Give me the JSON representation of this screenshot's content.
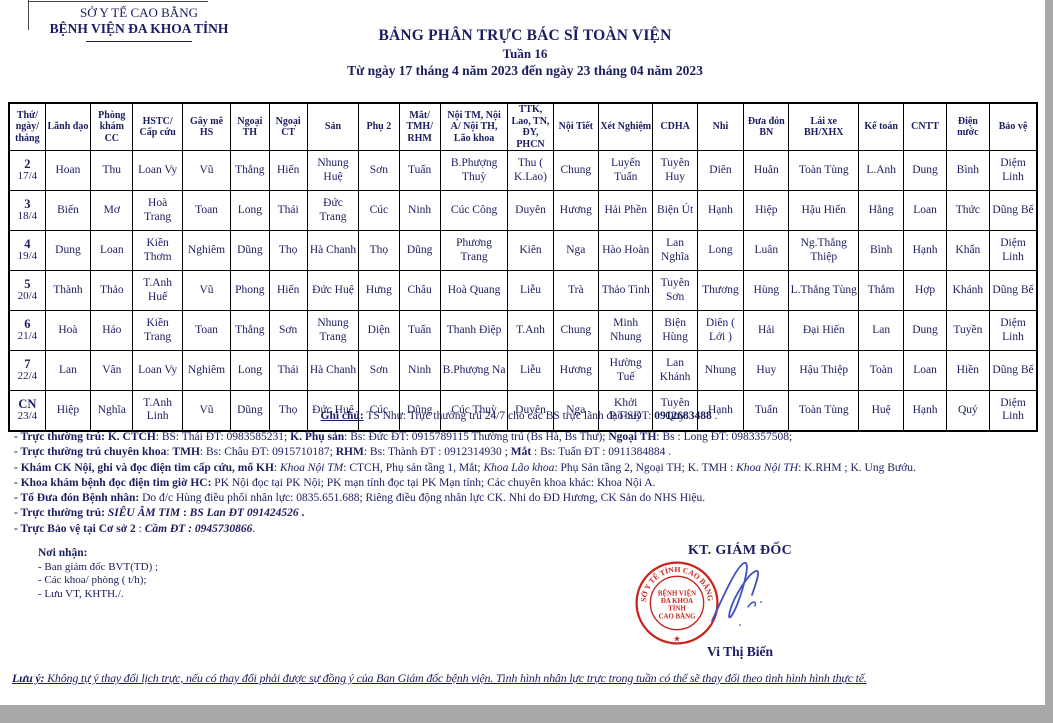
{
  "page": {
    "org_line1": "SỞ Y TẾ CAO BẰNG",
    "org_line2": "BỆNH VIỆN ĐA KHOA TỈNH",
    "title": "BẢNG PHÂN TRỰC BÁC SĨ TOÀN VIỆN",
    "subtitle": "Tuần 16",
    "date_range": "Từ ngày 17 tháng 4 năm 2023 đến ngày 23 tháng 04 năm 2023"
  },
  "table": {
    "columns": [
      "Thứ/ ngày/ tháng",
      "Lãnh đạo",
      "Phòng khám CC",
      "HSTC/ Cấp cứu",
      "Gây mê HS",
      "Ngoại TH",
      "Ngoại CT",
      "Sản",
      "Phụ 2",
      "Mắt/ TMH/ RHM",
      "Nội TM, Nội A/ Nội TH, Lão khoa",
      "TTK, Lao, TN, ĐY, PHCN",
      "Nội Tiết",
      "Xét Nghiệm",
      "CDHA",
      "Nhi",
      "Đưa đón BN",
      "Lái xe BH/XHX",
      "Kế toán",
      "CNTT",
      "Điện nước",
      "Bảo vệ"
    ],
    "rows": [
      {
        "day": "2",
        "date": "17/4",
        "cells": [
          "Hoan",
          "Thu",
          "Loan Vy",
          "Vũ",
          "Thắng",
          "Hiến",
          "Nhung Huệ",
          "Sơn",
          "Tuấn",
          "B.Phượng Thuỳ",
          "Thu ( K.Lao)",
          "Chung",
          "Luyến Tuấn",
          "Tuyên Huy",
          "Diên",
          "Huân",
          "Toàn Tùng",
          "L.Anh",
          "Dung",
          "Bình",
          "Diệm Linh"
        ]
      },
      {
        "day": "3",
        "date": "18/4",
        "cells": [
          "Biến",
          "Mơ",
          "Hoà Trang",
          "Toan",
          "Long",
          "Thái",
          "Đức Trang",
          "Cúc",
          "Ninh",
          "Cúc Công",
          "Duyên",
          "Hương",
          "Hải Phền",
          "Biện Út",
          "Hạnh",
          "Hiệp",
          "Hậu Hiến",
          "Hằng",
          "Loan",
          "Thức",
          "Dũng Bế"
        ]
      },
      {
        "day": "4",
        "date": "19/4",
        "cells": [
          "Dung",
          "Loan",
          "Kiền Thơm",
          "Nghiêm",
          "Dũng",
          "Thọ",
          "Hà Chanh",
          "Thọ",
          "Dũng",
          "Phương Trang",
          "Kiên",
          "Nga",
          "Hào Hoàn",
          "Lan Nghĩa",
          "Long",
          "Luân",
          "Ng.Thắng Thiệp",
          "Bình",
          "Hạnh",
          "Khẩn",
          "Diệm Linh"
        ]
      },
      {
        "day": "5",
        "date": "20/4",
        "cells": [
          "Thành",
          "Thảo",
          "T.Anh Huế",
          "Vũ",
          "Phong",
          "Hiến",
          "Đức Huệ",
          "Hưng",
          "Châu",
          "Hoà Quang",
          "Liễu",
          "Trà",
          "Thảo Tình",
          "Tuyên Sơn",
          "Thương",
          "Hùng",
          "L.Thắng Tùng",
          "Thắm",
          "Hợp",
          "Khánh",
          "Dũng Bế"
        ]
      },
      {
        "day": "6",
        "date": "21/4",
        "cells": [
          "Hoà",
          "Háo",
          "Kiền Trang",
          "Toan",
          "Thắng",
          "Sơn",
          "Nhung Trang",
          "Diện",
          "Tuấn",
          "Thanh Điệp",
          "T.Anh",
          "Chung",
          "Minh Nhung",
          "Biện Hùng",
          "Diên ( Lới )",
          "Hải",
          "Đại Hiến",
          "Lan",
          "Dung",
          "Tuyền",
          "Diệm Linh"
        ]
      },
      {
        "day": "7",
        "date": "22/4",
        "cells": [
          "Lan",
          "Vân",
          "Loan Vy",
          "Nghiêm",
          "Long",
          "Thái",
          "Hà Chanh",
          "Sơn",
          "Ninh",
          "B.Phượng Na",
          "Liễu",
          "Hương",
          "Hường Tuế",
          "Lan Khánh",
          "Nhung",
          "Huy",
          "Hậu Thiệp",
          "Toàn",
          "Loan",
          "Hiền",
          "Dũng Bế"
        ]
      },
      {
        "day": "CN",
        "date": "23/4",
        "cells": [
          "Hiệp",
          "Nghĩa",
          "T.Anh Linh",
          "Vũ",
          "Dũng",
          "Thọ",
          "Đức Huệ",
          "Cúc",
          "Dũng",
          "Cúc Thuỳ",
          "Duyên",
          "Nga",
          "Khởi P.Thuỷ",
          "Tuyên Quy",
          "Hạnh",
          "Tuấn",
          "Toàn Tùng",
          "Huệ",
          "Hạnh",
          "Quý",
          "Diệm Linh"
        ]
      }
    ]
  },
  "notes": {
    "ghi_chu": [
      {
        "t": "Ghi chú:",
        "b": true,
        "u": true
      },
      {
        "t": " TS Như: Trực thường trú 24/7 cho các BS trực lãnh đạo-SĐT: "
      },
      {
        "t": "0912683488",
        "b": true
      },
      {
        "t": " ."
      }
    ],
    "lines": [
      [
        {
          "t": "- Trực thường trú: K. CTCH",
          "b": true
        },
        {
          "t": ": BS: Thái ĐT: 0983585231; "
        },
        {
          "t": "K. Phụ sản",
          "b": true
        },
        {
          "t": ": Bs: Đức ĐT: 0915789115 Thường trú  (Bs Hà, Bs Thư);  "
        },
        {
          "t": "Ngoại TH",
          "b": true
        },
        {
          "t": ": Bs : Long ĐT: 0983357508;"
        }
      ],
      [
        {
          "t": "- Trực thường trú chuyên khoa",
          "b": true
        },
        {
          "t": ": "
        },
        {
          "t": "TMH",
          "b": true
        },
        {
          "t": ": Bs: Châu  ĐT: 0915710187;  "
        },
        {
          "t": "RHM",
          "b": true
        },
        {
          "t": ": Bs: Thành  ĐT : 0912314930 ; "
        },
        {
          "t": "Mắt",
          "b": true
        },
        {
          "t": " : Bs: Tuấn  ĐT : 0911384884 ."
        }
      ],
      [
        {
          "t": "- Khám CK Nội, ghi và đọc điện tim cấp cứu, mổ KH",
          "b": true
        },
        {
          "t": ": "
        },
        {
          "t": "Khoa Nội TM",
          "i": true
        },
        {
          "t": ": CTCH, Phụ sản tầng 1, Mắt; "
        },
        {
          "t": "Khoa Lão khoa",
          "i": true
        },
        {
          "t": ": Phụ Sản tầng 2, Ngoại TH; K. TMH : "
        },
        {
          "t": "Khoa Nội TH",
          "i": true
        },
        {
          "t": ": K.RHM ; K. Ung Bướu."
        }
      ],
      [
        {
          "t": "- Khoa khám bệnh đọc điện tim giờ HC:",
          "b": true
        },
        {
          "t": " PK Nội đọc tại PK Nội; PK mạn tính đọc tại PK Mạn tính; Các chuyên khoa khác: Khoa Nội A."
        }
      ],
      [
        {
          "t": "- Tổ Đưa đón Bệnh nhân:",
          "b": true
        },
        {
          "t": " Do đ/c Hùng điều phối nhân lực: 0835.651.688; Riêng điều động nhân lực  CK. Nhi do ĐD Hương, CK Sản do NHS Hiệu."
        }
      ],
      [
        {
          "t": "- Trực thường trú: ",
          "b": true
        },
        {
          "t": "SIÊU ÂM TIM",
          "b": true,
          "i": true
        },
        {
          "t": " : ",
          "b": true
        },
        {
          "t": "BS Lan  ĐT 091424526",
          "b": true,
          "i": true
        },
        {
          "t": " .",
          "b": true
        }
      ],
      [
        {
          "t": "- Trực Bảo vệ tại Cơ sở 2",
          "b": true
        },
        {
          "t": " : "
        },
        {
          "t": "Cầm  ĐT : 0945730866",
          "b": true,
          "i": true
        },
        {
          "t": "."
        }
      ]
    ]
  },
  "recipients": {
    "heading": "Nơi nhận:",
    "items": [
      "- Ban giám đốc BVT(TD) ;",
      "- Các khoa/ phòng ( t/h);",
      "- Lưu VT, KHTH./."
    ]
  },
  "signature": {
    "title": "KT. GIÁM ĐỐC",
    "name": "Vi Thị Biến",
    "stamp": {
      "ring": "SỞ Y TẾ TỈNH CAO BẰNG",
      "line1": "BỆNH VIỆN",
      "line2": "ĐA KHOA",
      "line3": "TỈNH",
      "line4": "CAO BẰNG",
      "star": "★"
    }
  },
  "footer": {
    "note": [
      {
        "t": "Lưu ý:",
        "b": true,
        "i": true,
        "u": true
      },
      {
        "t": "  Không tự ý thay đổi lịch trực, nếu có thay đổi phải được sự đồng ý của Ban Giám đốc bệnh viện. Tình hình nhân lực trực trong tuần có thể sẽ thay đổi theo tình hình hình thực tế.",
        "i": true,
        "u": true
      }
    ]
  },
  "colors": {
    "text": "#1c1c60",
    "stamp_red": "#c9251d",
    "signature_blue": "#3f51c1",
    "table_border": "#000000",
    "page_bg": "#ffffff",
    "outside_bg": "#a8a8a8"
  }
}
